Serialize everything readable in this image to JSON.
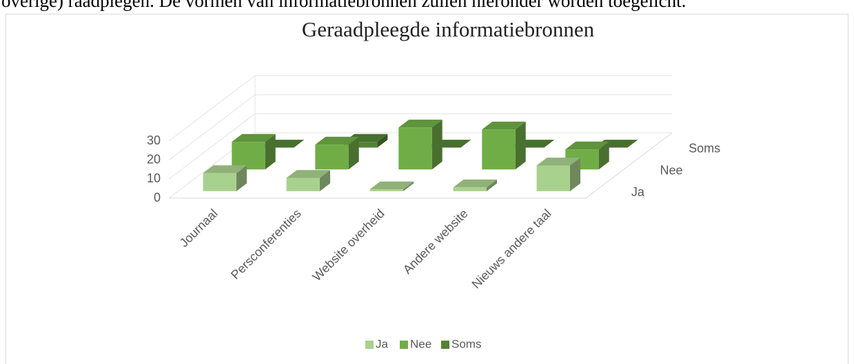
{
  "doc_text": "overige) raadplegen. De vormen van informatiebronnen zullen hieronder worden toegelicht.",
  "chart_data": {
    "type": "bar3d",
    "title": "Geraadpleegde informatiebronnen",
    "categories": [
      "Journaal",
      "Persconferenties",
      "Website overheid",
      "Andere website",
      "Nieuws andere taal"
    ],
    "series": [
      {
        "name": "Ja",
        "color": "#a9d18e",
        "values": [
          9.5,
          7,
          1,
          2,
          13.5
        ]
      },
      {
        "name": "Nee",
        "color": "#70ad47",
        "values": [
          14.5,
          13,
          22,
          21,
          10.5
        ]
      },
      {
        "name": "Soms",
        "color": "#548235",
        "values": [
          0,
          3,
          0,
          0,
          0
        ]
      }
    ],
    "ylim": [
      0,
      30
    ],
    "yticks": [
      0,
      10,
      20,
      30
    ],
    "grid": true,
    "legend": "bottom"
  }
}
